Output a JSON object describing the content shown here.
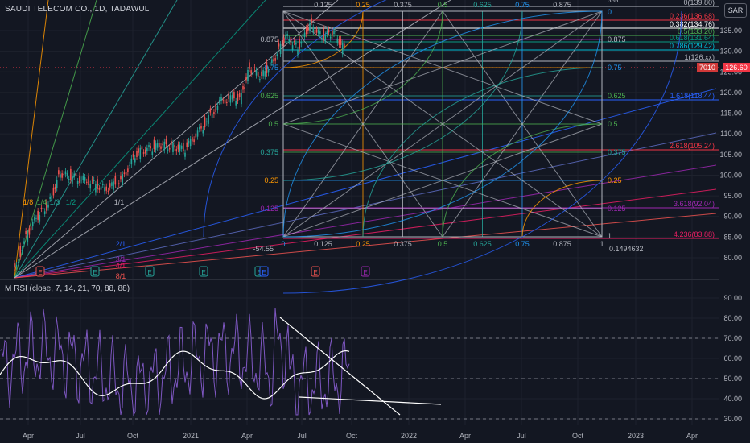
{
  "header": {
    "symbol_title": "SAUDI TELECOM CO., 1D, TADAWUL",
    "currency": "SAR",
    "last_price": "126.60",
    "countdown": "7010"
  },
  "indicator": {
    "title": "M RSI (close, 7, 14, 21, 70, 88, 88)"
  },
  "colors": {
    "background": "#131722",
    "grid": "#1e222d",
    "candle_up": "#26a69a",
    "candle_down": "#ef5350",
    "rsi_line": "#7e57c2",
    "rsi_ma": "#ffffff",
    "last_price": "#f23645"
  },
  "price_axis": [
    "135.00",
    "130.00",
    "125.00",
    "120.00",
    "115.00",
    "110.00",
    "105.00",
    "100.00",
    "95.00",
    "90.00",
    "85.00",
    "80.00"
  ],
  "rsi_axis": [
    "90.00",
    "80.00",
    "70.00",
    "60.00",
    "50.00",
    "40.00",
    "30.00"
  ],
  "time_axis": [
    "Apr",
    "Jul",
    "Oct",
    "2021",
    "Apr",
    "Jul",
    "Oct",
    "2022",
    "Apr",
    "Jul",
    "Oct",
    "2023",
    "Apr"
  ],
  "gann_box": {
    "top_labels": [
      "0.125",
      "0.25",
      "0.375",
      "0.5",
      "0.625",
      "0.75",
      "0.875"
    ],
    "bottom_labels": [
      "0",
      "0.125",
      "0.25",
      "0.375",
      "0.5",
      "0.625",
      "0.75",
      "0.875",
      "1"
    ],
    "left_labels": [
      "0.875",
      "0.75",
      "0.625",
      "0.5",
      "0.375",
      "0.25",
      "0.125"
    ],
    "right_labels": [
      "0.875",
      "0.75",
      "0.625",
      "0.5",
      "0.375",
      "0.25",
      "0.125"
    ],
    "corner_top_right": "0",
    "corner_bottom_right": "1",
    "corner_top_far": "385",
    "bottom_left_value": "-54.55",
    "bottom_right_value": "0.1494632"
  },
  "fib_levels": [
    {
      "label": "0(139.80)",
      "color": "#b2b5be"
    },
    {
      "label": "0.236(136.68)",
      "color": "#f23645"
    },
    {
      "label": "0.382(134.76)",
      "color": "#ffffff"
    },
    {
      "label": "0.5(133.20)",
      "color": "#4caf50"
    },
    {
      "label": "0.618(131.64)",
      "color": "#089981"
    },
    {
      "label": "0.786(129.42)",
      "color": "#00bcd4"
    },
    {
      "label": "1(126.xx)",
      "color": "#b2b5be"
    },
    {
      "label": "1.618(118.44)",
      "color": "#2962ff"
    },
    {
      "label": "2.618(105.24)",
      "color": "#f23645"
    },
    {
      "label": "3.618(92.04)",
      "color": "#9c27b0"
    },
    {
      "label": "4.236(83.88)",
      "color": "#e91e63"
    }
  ],
  "fan_labels": [
    "1/8",
    "1/4",
    "1/3",
    "1/2",
    "1/1",
    "2/1",
    "3/1",
    "4/1",
    "8/1"
  ],
  "event_markers": [
    "E",
    "E",
    "E",
    "E",
    "E",
    "E",
    "E",
    "E",
    "E"
  ]
}
